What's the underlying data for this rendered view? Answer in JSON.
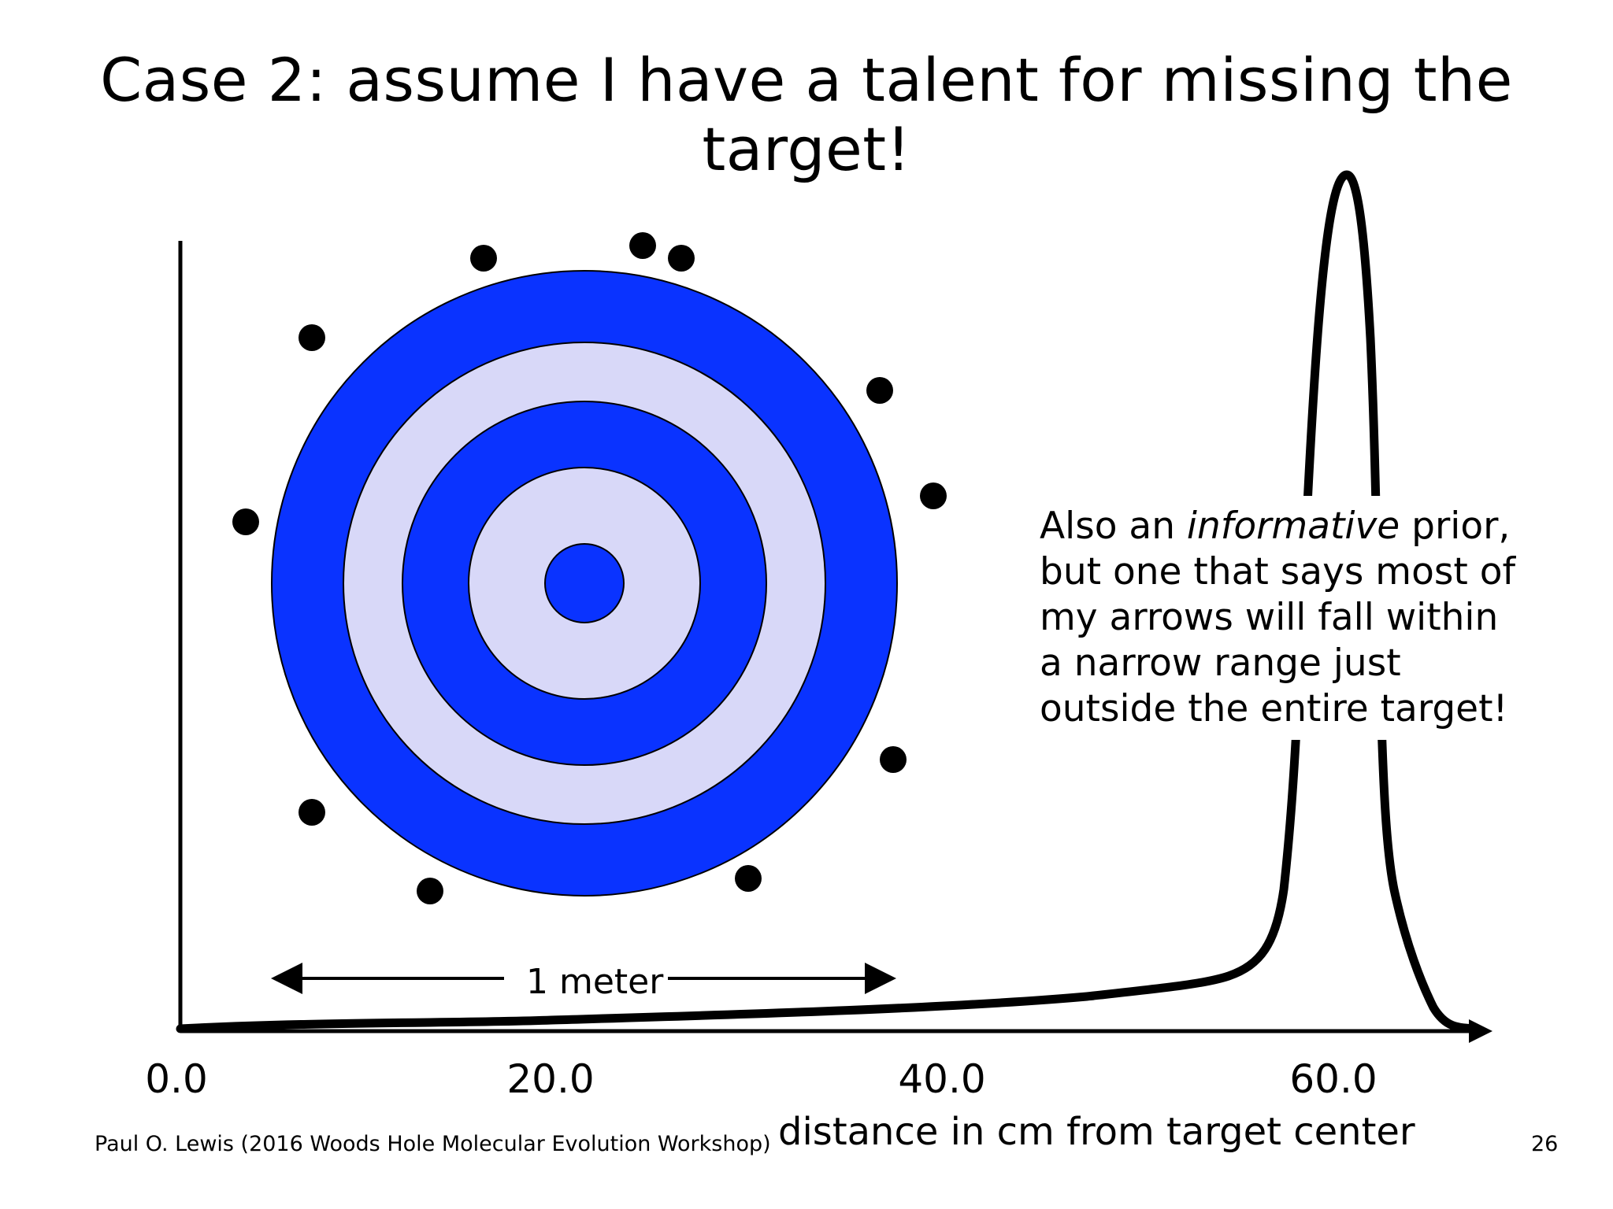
{
  "slide": {
    "title_line1": "Case 2: assume I have a talent for missing the",
    "title_line2": "target!",
    "annotation": {
      "line1_pre": "Also an ",
      "line1_em": "informative",
      "line1_post": " prior,",
      "line2": "but one that says most of",
      "line3": "my arrows will fall within",
      "line4": "a narrow range just",
      "line5": "outside the entire target!"
    },
    "scale_label": "1 meter",
    "x_ticks": [
      "0.0",
      "20.0",
      "40.0",
      "60.0"
    ],
    "x_label": "distance in cm from target center",
    "footer": "Paul O. Lewis (2016 Woods Hole Molecular Evolution Workshop)",
    "page_number": "26",
    "colors": {
      "ring_dark": "#0a33ff",
      "ring_light": "#d8d8f8",
      "ink": "#000000"
    }
  }
}
